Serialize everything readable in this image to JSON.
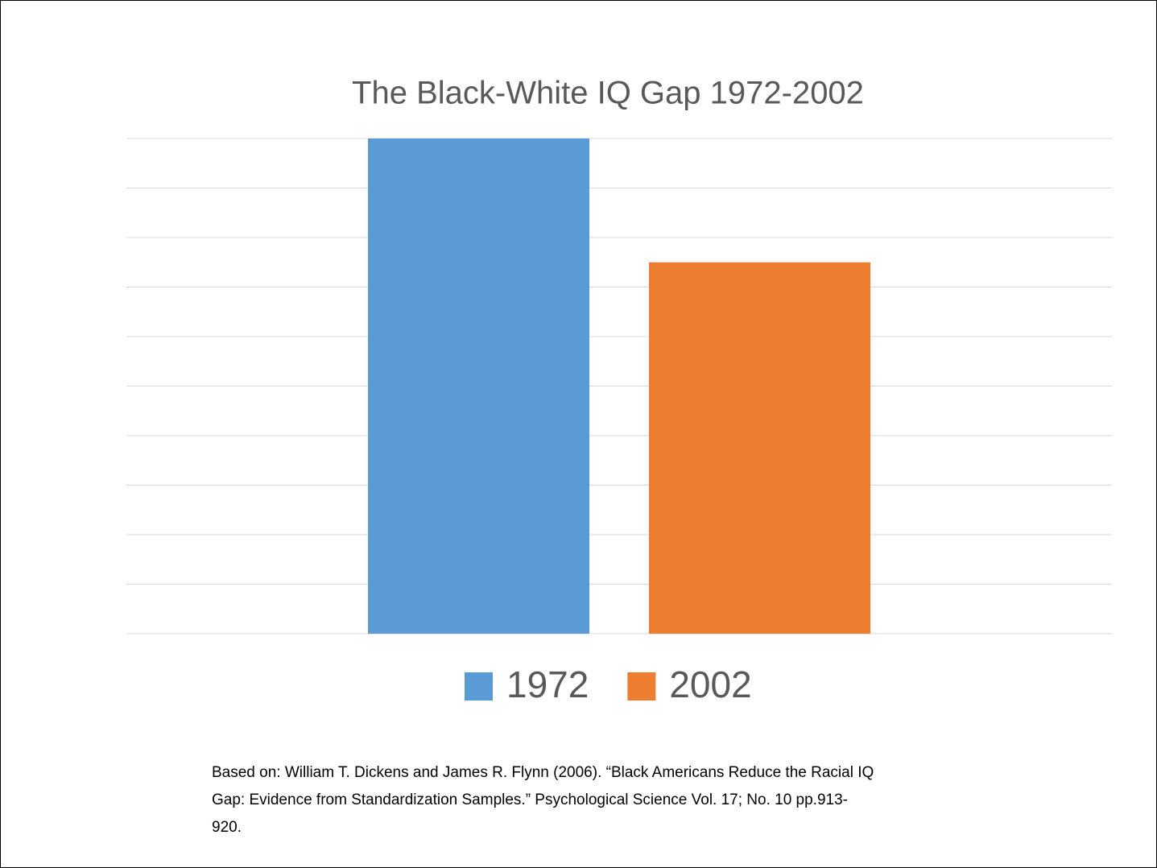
{
  "chart_data": {
    "type": "bar",
    "title": "The Black-White IQ Gap 1972-2002",
    "categories": [
      null
    ],
    "series": [
      {
        "name": "1972",
        "color": "#5b9bd5",
        "values": [
          10
        ]
      },
      {
        "name": "2002",
        "color": "#ed7d31",
        "values": [
          7.5
        ]
      }
    ],
    "ylim": [
      0,
      10
    ],
    "yticks": [
      0,
      1,
      2,
      3,
      4,
      5,
      6,
      7,
      8,
      9,
      10
    ],
    "show_tick_labels": false,
    "grid": true,
    "legend": "bottom",
    "source": [
      "Based on: William T. Dickens and James R. Flynn (2006). “Black Americans Reduce the Racial IQ",
      "Gap: Evidence from Standardization Samples.” Psychological Science  Vol. 17; No. 10 pp.913-",
      "920."
    ]
  }
}
